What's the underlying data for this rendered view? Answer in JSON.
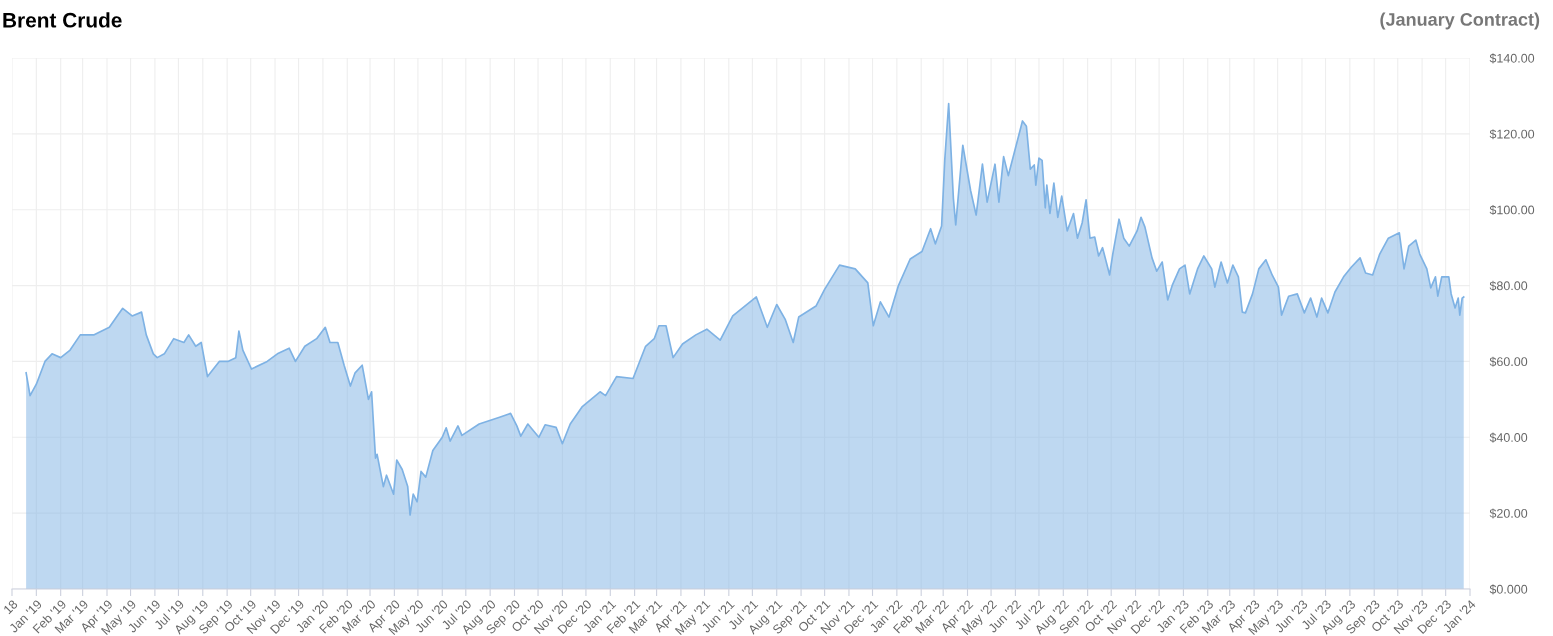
{
  "chart_data": {
    "type": "area",
    "title": "Brent Crude",
    "subtitle": "(January Contract)",
    "x": [
      "2018-12-19",
      "2018-12-24",
      "2019-01-01",
      "2019-01-12",
      "2019-01-21",
      "2019-02-01",
      "2019-02-13",
      "2019-02-26",
      "2019-03-15",
      "2019-04-04",
      "2019-04-14",
      "2019-04-21",
      "2019-05-03",
      "2019-05-15",
      "2019-05-21",
      "2019-05-30",
      "2019-06-04",
      "2019-06-13",
      "2019-06-25",
      "2019-07-08",
      "2019-07-14",
      "2019-07-23",
      "2019-07-30",
      "2019-08-07",
      "2019-08-22",
      "2019-09-02",
      "2019-09-12",
      "2019-09-16",
      "2019-09-21",
      "2019-10-02",
      "2019-10-22",
      "2019-11-04",
      "2019-11-19",
      "2019-11-27",
      "2019-12-09",
      "2019-12-24",
      "2020-01-04",
      "2020-01-10",
      "2020-01-20",
      "2020-01-28",
      "2020-02-05",
      "2020-02-11",
      "2020-02-20",
      "2020-02-28",
      "2020-03-03",
      "2020-03-08",
      "2020-03-10",
      "2020-03-18",
      "2020-03-22",
      "2020-03-31",
      "2020-04-04",
      "2020-04-11",
      "2020-04-18",
      "2020-04-21",
      "2020-04-25",
      "2020-04-30",
      "2020-05-05",
      "2020-05-11",
      "2020-05-20",
      "2020-06-01",
      "2020-06-06",
      "2020-06-11",
      "2020-06-21",
      "2020-06-26",
      "2020-07-18",
      "2020-08-13",
      "2020-08-27",
      "2020-09-04",
      "2020-09-09",
      "2020-09-18",
      "2020-10-02",
      "2020-10-10",
      "2020-10-24",
      "2020-11-01",
      "2020-11-11",
      "2020-11-26",
      "2020-12-19",
      "2020-12-26",
      "2021-01-09",
      "2021-01-30",
      "2021-02-15",
      "2021-02-26",
      "2021-03-04",
      "2021-03-13",
      "2021-03-22",
      "2021-04-03",
      "2021-04-20",
      "2021-05-04",
      "2021-05-21",
      "2021-06-06",
      "2021-07-06",
      "2021-07-20",
      "2021-08-01",
      "2021-08-12",
      "2021-08-22",
      "2021-08-29",
      "2021-09-20",
      "2021-10-01",
      "2021-10-20",
      "2021-11-09",
      "2021-11-25",
      "2021-12-02",
      "2021-12-11",
      "2021-12-22",
      "2022-01-03",
      "2022-01-18",
      "2022-02-02",
      "2022-02-13",
      "2022-02-19",
      "2022-02-27",
      "2022-03-03",
      "2022-03-08",
      "2022-03-14",
      "2022-03-17",
      "2022-03-26",
      "2022-04-05",
      "2022-04-12",
      "2022-04-20",
      "2022-04-26",
      "2022-05-06",
      "2022-05-11",
      "2022-05-17",
      "2022-05-23",
      "2022-06-02",
      "2022-06-10",
      "2022-06-15",
      "2022-06-20",
      "2022-06-25",
      "2022-06-27",
      "2022-07-01",
      "2022-07-05",
      "2022-07-09",
      "2022-07-11",
      "2022-07-15",
      "2022-07-20",
      "2022-07-25",
      "2022-07-30",
      "2022-08-06",
      "2022-08-14",
      "2022-08-19",
      "2022-08-25",
      "2022-08-30",
      "2022-09-04",
      "2022-09-10",
      "2022-09-15",
      "2022-09-20",
      "2022-09-29",
      "2022-10-03",
      "2022-10-11",
      "2022-10-17",
      "2022-10-24",
      "2022-11-03",
      "2022-11-08",
      "2022-11-13",
      "2022-11-22",
      "2022-11-28",
      "2022-12-05",
      "2022-12-12",
      "2022-12-18",
      "2022-12-27",
      "2023-01-03",
      "2023-01-09",
      "2023-01-19",
      "2023-01-27",
      "2023-02-06",
      "2023-02-10",
      "2023-02-18",
      "2023-02-26",
      "2023-03-05",
      "2023-03-12",
      "2023-03-17",
      "2023-03-21",
      "2023-03-30",
      "2023-04-07",
      "2023-04-16",
      "2023-04-24",
      "2023-05-02",
      "2023-05-06",
      "2023-05-15",
      "2023-05-26",
      "2023-06-04",
      "2023-06-12",
      "2023-06-20",
      "2023-06-26",
      "2023-07-04",
      "2023-07-13",
      "2023-07-24",
      "2023-08-03",
      "2023-08-14",
      "2023-08-21",
      "2023-08-30",
      "2023-09-08",
      "2023-09-19",
      "2023-10-03",
      "2023-10-09",
      "2023-10-15",
      "2023-10-24",
      "2023-10-29",
      "2023-11-07",
      "2023-11-12",
      "2023-11-18",
      "2023-11-21",
      "2023-11-26",
      "2023-12-05",
      "2023-12-08",
      "2023-12-13",
      "2023-12-17",
      "2023-12-19",
      "2023-12-22",
      "2023-12-24"
    ],
    "series": [
      {
        "color": "#7eb2e4",
        "values": [
          57,
          51,
          54,
          60,
          62,
          61,
          63,
          67,
          67,
          69,
          72,
          74,
          72,
          73,
          67,
          62,
          61,
          62,
          66,
          65,
          67,
          64,
          65,
          56,
          60,
          60,
          61,
          68,
          63,
          58,
          60,
          62,
          63.5,
          60,
          64,
          66,
          69,
          65,
          65,
          59,
          53.5,
          57,
          59,
          50,
          52,
          34.5,
          35.5,
          27,
          30,
          25,
          34,
          31.5,
          27,
          19.5,
          25,
          23,
          31,
          29.5,
          36.5,
          40,
          42.5,
          39,
          43,
          40.5,
          43.5,
          45.3,
          46.3,
          43,
          40.3,
          43.5,
          40,
          43.3,
          42.6,
          38.3,
          43.5,
          48,
          52,
          51,
          56,
          55.5,
          64,
          66,
          69.4,
          69.4,
          61,
          64.6,
          67,
          68.5,
          65.6,
          72,
          77,
          69,
          75,
          71,
          65,
          71.7,
          74.6,
          79,
          85.4,
          84.4,
          80.7,
          69.4,
          75.7,
          71.7,
          80,
          87,
          89,
          95,
          91,
          95.7,
          113,
          128,
          103,
          96,
          117,
          105,
          98.6,
          112,
          102,
          112,
          102,
          114,
          109,
          117,
          123.4,
          122,
          110.7,
          111.8,
          106.5,
          113.6,
          113,
          100.5,
          106.5,
          99,
          107,
          98,
          103.6,
          94.4,
          99,
          92.5,
          96.5,
          102.6,
          92.5,
          92.8,
          87.8,
          90,
          82.8,
          88.3,
          97.5,
          92.5,
          90.4,
          94.4,
          98,
          95.4,
          87.3,
          83.8,
          86.2,
          76.2,
          80.2,
          84.4,
          85.4,
          77.8,
          84.4,
          87.8,
          84.4,
          79.6,
          86.2,
          80.7,
          85.4,
          82.3,
          73,
          72.8,
          77.8,
          84.4,
          86.8,
          82.8,
          79.6,
          72.2,
          77.2,
          77.8,
          72.8,
          76.7,
          71.7,
          76.7,
          72.8,
          78.3,
          82.3,
          84.9,
          87.3,
          83.3,
          82.8,
          88.3,
          92.5,
          93.9,
          84.4,
          90.4,
          92,
          88.3,
          84.4,
          79.4,
          82.3,
          77.2,
          82.3,
          82.3,
          77.8,
          74.1,
          76.7,
          72.2,
          76.7,
          77
        ]
      }
    ],
    "ylim": [
      0,
      140
    ],
    "yticks": [
      {
        "value": 0,
        "label": "$0.000"
      },
      {
        "value": 20,
        "label": "$20.00"
      },
      {
        "value": 40,
        "label": "$40.00"
      },
      {
        "value": 60,
        "label": "$60.00"
      },
      {
        "value": 80,
        "label": "$80.00"
      },
      {
        "value": 100,
        "label": "$100.00"
      },
      {
        "value": 120,
        "label": "$120.00"
      },
      {
        "value": 140,
        "label": "$140.00"
      }
    ],
    "xlim": [
      "2018-12-01",
      "2024-01-01"
    ],
    "xticks": [
      {
        "value": "2018-12-01",
        "label": "18"
      },
      {
        "value": "2019-01-01",
        "label": "Jan '19"
      },
      {
        "value": "2019-02-01",
        "label": "Feb '19"
      },
      {
        "value": "2019-03-01",
        "label": "Mar '19"
      },
      {
        "value": "2019-04-01",
        "label": "Apr '19"
      },
      {
        "value": "2019-05-01",
        "label": "May '19"
      },
      {
        "value": "2019-06-01",
        "label": "Jun '19"
      },
      {
        "value": "2019-07-01",
        "label": "Jul '19"
      },
      {
        "value": "2019-08-01",
        "label": "Aug '19"
      },
      {
        "value": "2019-09-01",
        "label": "Sep '19"
      },
      {
        "value": "2019-10-01",
        "label": "Oct '19"
      },
      {
        "value": "2019-11-01",
        "label": "Nov '19"
      },
      {
        "value": "2019-12-01",
        "label": "Dec '19"
      },
      {
        "value": "2020-01-01",
        "label": "Jan '20"
      },
      {
        "value": "2020-02-01",
        "label": "Feb '20"
      },
      {
        "value": "2020-03-01",
        "label": "Mar '20"
      },
      {
        "value": "2020-04-01",
        "label": "Apr '20"
      },
      {
        "value": "2020-05-01",
        "label": "May '20"
      },
      {
        "value": "2020-06-01",
        "label": "Jun '20"
      },
      {
        "value": "2020-07-01",
        "label": "Jul '20"
      },
      {
        "value": "2020-08-01",
        "label": "Aug '20"
      },
      {
        "value": "2020-09-01",
        "label": "Sep '20"
      },
      {
        "value": "2020-10-01",
        "label": "Oct '20"
      },
      {
        "value": "2020-11-01",
        "label": "Nov '20"
      },
      {
        "value": "2020-12-01",
        "label": "Dec '20"
      },
      {
        "value": "2021-01-01",
        "label": "Jan '21"
      },
      {
        "value": "2021-02-01",
        "label": "Feb '21"
      },
      {
        "value": "2021-03-01",
        "label": "Mar '21"
      },
      {
        "value": "2021-04-01",
        "label": "Apr '21"
      },
      {
        "value": "2021-05-01",
        "label": "May '21"
      },
      {
        "value": "2021-06-01",
        "label": "Jun '21"
      },
      {
        "value": "2021-07-01",
        "label": "Jul '21"
      },
      {
        "value": "2021-08-01",
        "label": "Aug '21"
      },
      {
        "value": "2021-09-01",
        "label": "Sep '21"
      },
      {
        "value": "2021-10-01",
        "label": "Oct '21"
      },
      {
        "value": "2021-11-01",
        "label": "Nov '21"
      },
      {
        "value": "2021-12-01",
        "label": "Dec '21"
      },
      {
        "value": "2022-01-01",
        "label": "Jan '22"
      },
      {
        "value": "2022-02-01",
        "label": "Feb '22"
      },
      {
        "value": "2022-03-01",
        "label": "Mar '22"
      },
      {
        "value": "2022-04-01",
        "label": "Apr '22"
      },
      {
        "value": "2022-05-01",
        "label": "May '22"
      },
      {
        "value": "2022-06-01",
        "label": "Jun '22"
      },
      {
        "value": "2022-07-01",
        "label": "Jul '22"
      },
      {
        "value": "2022-08-01",
        "label": "Aug '22"
      },
      {
        "value": "2022-09-01",
        "label": "Sep '22"
      },
      {
        "value": "2022-10-01",
        "label": "Oct '22"
      },
      {
        "value": "2022-11-01",
        "label": "Nov '22"
      },
      {
        "value": "2022-12-01",
        "label": "Dec '22"
      },
      {
        "value": "2023-01-01",
        "label": "Jan '23"
      },
      {
        "value": "2023-02-01",
        "label": "Feb '23"
      },
      {
        "value": "2023-03-01",
        "label": "Mar '23"
      },
      {
        "value": "2023-04-01",
        "label": "Apr '23"
      },
      {
        "value": "2023-05-01",
        "label": "May '23"
      },
      {
        "value": "2023-06-01",
        "label": "Jun '23"
      },
      {
        "value": "2023-07-01",
        "label": "Jul '23"
      },
      {
        "value": "2023-08-01",
        "label": "Aug '23"
      },
      {
        "value": "2023-09-01",
        "label": "Sep '23"
      },
      {
        "value": "2023-10-01",
        "label": "Oct '23"
      },
      {
        "value": "2023-11-01",
        "label": "Nov '23"
      },
      {
        "value": "2023-12-01",
        "label": "Dec '23"
      },
      {
        "value": "2024-01-01",
        "label": "Jan '24"
      }
    ],
    "grid": true,
    "legend": false
  }
}
